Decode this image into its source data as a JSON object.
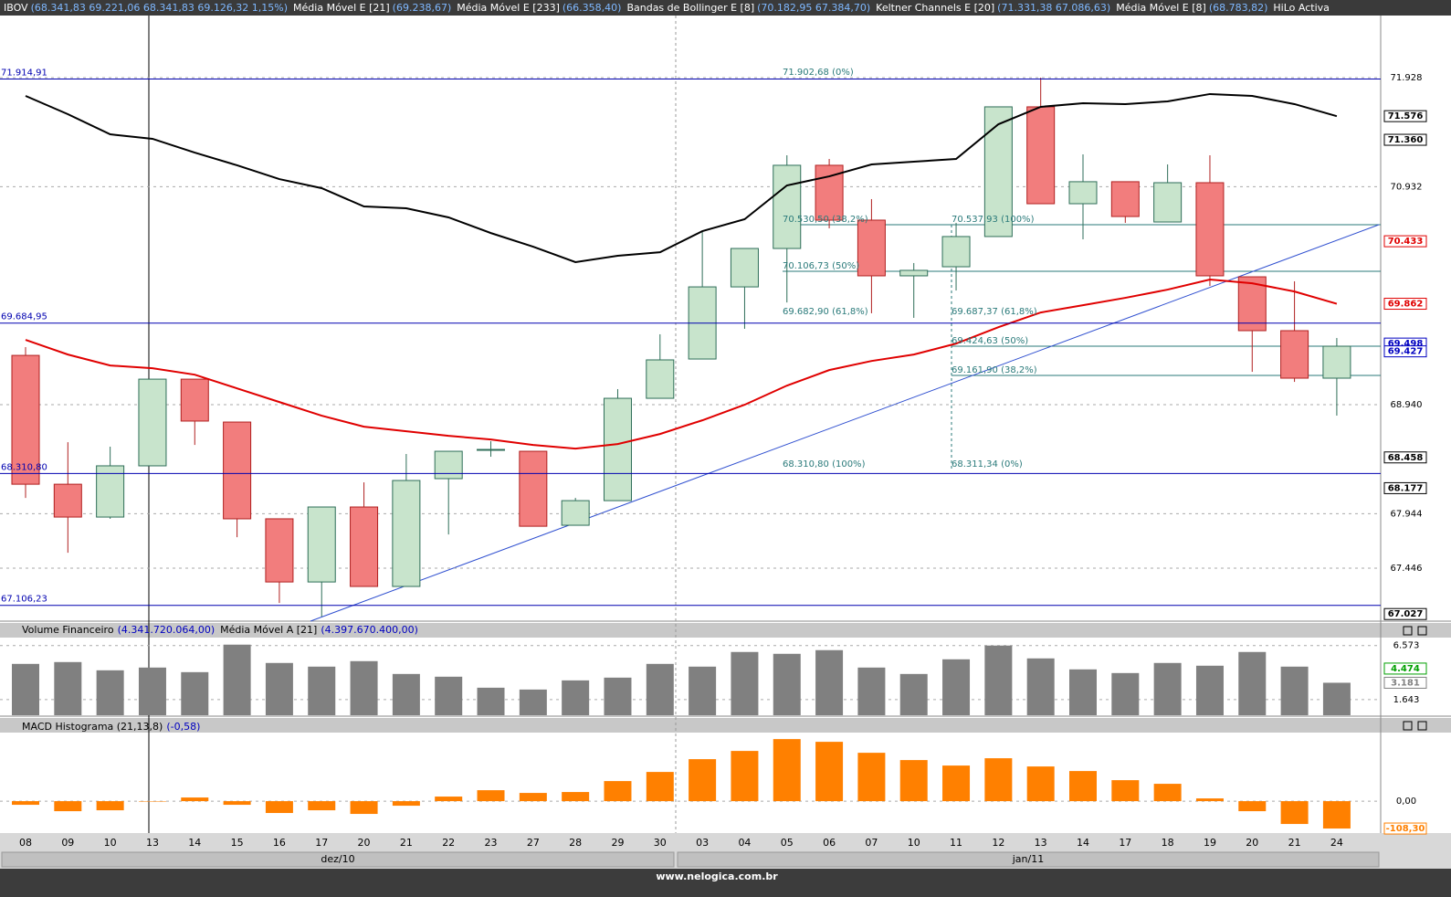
{
  "header": {
    "items": [
      {
        "name": "IBOV",
        "values": "(68.341,83  69.221,06  68.341,83  69.126,32  1,15%)"
      },
      {
        "name": "Média Móvel E [21]",
        "values": "(69.238,67)"
      },
      {
        "name": "Média Móvel E [233]",
        "values": "(66.358,40)"
      },
      {
        "name": "Bandas de Bollinger E [8]",
        "values": "(70.182,95  67.384,70)"
      },
      {
        "name": "Keltner Channels E [20]",
        "values": "(71.331,38  67.086,63)"
      },
      {
        "name": "Média Móvel E [8]",
        "values": "(68.783,82)"
      },
      {
        "name": "HiLo Activa",
        "values": ""
      }
    ]
  },
  "months": [
    "dez/10",
    "jan/11"
  ],
  "footer": "www.nelogica.com.br",
  "chart_data": [
    {
      "type": "candlestick",
      "categories": [
        "08",
        "09",
        "10",
        "13",
        "14",
        "15",
        "16",
        "17",
        "20",
        "21",
        "22",
        "23",
        "27",
        "28",
        "29",
        "30",
        "03",
        "04",
        "05",
        "06",
        "07",
        "10",
        "11",
        "12",
        "13",
        "14",
        "17",
        "18",
        "19",
        "20",
        "21",
        "24"
      ],
      "open": [
        69.39,
        68.213,
        67.913,
        68.381,
        69.173,
        68.781,
        67.897,
        67.32,
        68.005,
        67.279,
        68.264,
        68.531,
        68.514,
        67.838,
        68.063,
        68.998,
        69.357,
        70.016,
        70.367,
        71.127,
        70.626,
        70.117,
        70.2,
        70.476,
        71.661,
        70.776,
        70.977,
        70.609,
        70.968,
        70.108,
        69.616,
        69.182
      ],
      "high": [
        69.466,
        68.597,
        68.556,
        69.173,
        69.173,
        68.781,
        67.897,
        68.005,
        68.23,
        68.489,
        68.514,
        68.606,
        68.514,
        68.088,
        69.082,
        69.583,
        70.526,
        70.367,
        71.218,
        71.185,
        70.818,
        70.234,
        70.601,
        71.661,
        71.928,
        71.227,
        70.977,
        71.135,
        71.218,
        70.108,
        70.067,
        69.549
      ],
      "low": [
        68.088,
        67.587,
        67.897,
        68.381,
        68.572,
        67.729,
        67.128,
        67.003,
        67.279,
        67.279,
        67.754,
        68.464,
        67.829,
        67.838,
        68.063,
        68.998,
        69.357,
        69.633,
        69.874,
        70.551,
        69.775,
        69.733,
        69.983,
        70.476,
        70.776,
        70.451,
        70.601,
        70.609,
        70.025,
        69.24,
        69.148,
        68.84
      ],
      "close": [
        68.213,
        67.913,
        68.381,
        69.173,
        68.79,
        67.897,
        67.32,
        68.005,
        67.279,
        68.247,
        68.514,
        68.531,
        67.829,
        68.063,
        68.998,
        69.349,
        70.016,
        70.367,
        71.127,
        70.626,
        70.117,
        70.167,
        70.476,
        71.661,
        70.776,
        70.977,
        70.659,
        70.968,
        70.117,
        69.616,
        69.182,
        69.474
      ],
      "up_color": "#c8e4cc",
      "up_border": "#2e6e58",
      "down_color": "#f27d7d",
      "down_border": "#b02020",
      "series": [
        {
          "color": "#e00000",
          "values": [
            69.532,
            69.398,
            69.298,
            69.273,
            69.214,
            69.089,
            68.964,
            68.839,
            68.739,
            68.697,
            68.655,
            68.622,
            68.572,
            68.538,
            68.58,
            68.672,
            68.797,
            68.939,
            69.114,
            69.256,
            69.339,
            69.398,
            69.498,
            69.648,
            69.782,
            69.849,
            69.916,
            69.991,
            70.083,
            70.049,
            69.974,
            69.862
          ]
        },
        {
          "color": "#000000",
          "values": [
            71.761,
            71.594,
            71.41,
            71.369,
            71.243,
            71.127,
            71.001,
            70.918,
            70.751,
            70.734,
            70.651,
            70.508,
            70.383,
            70.242,
            70.3,
            70.333,
            70.525,
            70.634,
            70.943,
            71.026,
            71.135,
            71.16,
            71.185,
            71.502,
            71.661,
            71.694,
            71.686,
            71.711,
            71.778,
            71.761,
            71.686,
            71.576
          ]
        }
      ],
      "ylim": [
        66.962,
        72.487
      ],
      "yticks": [
        71.928,
        70.932,
        {
          "value": 68.94,
          "label": "68.940"
        },
        67.944,
        67.446
      ],
      "grid": true,
      "levels": [
        {
          "value": 71.91491,
          "label": "71.914,91",
          "color": "#0000b0"
        },
        {
          "value": 69.68495,
          "label": "69.684,95",
          "color": "#0000b0"
        },
        {
          "value": 68.3108,
          "label": "68.310,80",
          "color": "#0000b0"
        },
        {
          "value": 67.10623,
          "label": "67.106,23",
          "color": "#0000b0"
        }
      ],
      "tags": [
        {
          "value": 71.576,
          "color": "#000000"
        },
        {
          "value": 71.36,
          "label": "71.360",
          "color": "#000000"
        },
        {
          "value": 70.433,
          "color": "#e00000"
        },
        {
          "value": 69.862,
          "color": "#e00000"
        },
        {
          "value": 69.498,
          "color": "#0000c0"
        },
        {
          "value": 69.427,
          "color": "#0000c0"
        },
        {
          "value": 68.458,
          "color": "#000000"
        },
        {
          "value": 68.177,
          "color": "#000000"
        },
        {
          "value": 67.027,
          "color": "#000000"
        }
      ],
      "annotations": [
        "71.902,68 (0%)",
        "70.530,50 (38,2%)",
        "70.106,73 (50%)",
        "69.682,90 (61,8%)",
        "68.310,80 (100%)",
        "70.537,93 (100%)",
        "69.687,37 (61,8%)",
        "69.424,63 (50%)",
        "69.161,90 (38,2%)",
        "68.311,34 (0%)"
      ]
    },
    {
      "type": "bar",
      "title": "Volume Financeiro",
      "title_values": "(4.341.720.064,00)",
      "subtitle": "Média Móvel A [21]",
      "subtitle_values": "(4.397.670.400,00)",
      "color": "#808080",
      "values": [
        4.901,
        5.068,
        4.316,
        4.567,
        4.149,
        6.656,
        4.985,
        4.651,
        5.152,
        3.982,
        3.732,
        2.729,
        2.562,
        3.397,
        3.648,
        4.901,
        4.651,
        5.987,
        5.82,
        6.154,
        4.567,
        3.982,
        5.319,
        6.572,
        5.402,
        4.4,
        4.066,
        4.985,
        4.734,
        5.987,
        4.651,
        3.181
      ],
      "ylim": [
        0.22,
        7.3
      ],
      "yticks": [
        6.573,
        1.643
      ],
      "tags": [
        {
          "value": 4.474,
          "color": "#00a000"
        },
        {
          "value": 3.181,
          "color": "#808080"
        }
      ]
    },
    {
      "type": "bar",
      "title": "MACD Histograma (21,13,8)",
      "title_values": "(-0,58)",
      "color": "#ff8000",
      "values": [
        -14.4,
        -39.7,
        -36.1,
        -1.8,
        14.4,
        -14.4,
        -46.9,
        -36.1,
        -50.5,
        -18.1,
        18.1,
        43.3,
        32.5,
        36.1,
        79.4,
        115.5,
        166.1,
        198.6,
        245.5,
        234.7,
        191.3,
        162.5,
        140.8,
        169.7,
        137.2,
        119.1,
        83.0,
        68.6,
        10.8,
        -39.7,
        -90.3,
        -108.3
      ],
      "ylim": [
        -119,
        264
      ],
      "yticks": [
        {
          "value": 0,
          "label": "0,00"
        }
      ],
      "tags": [
        {
          "value": -108.3,
          "label": "-108,30",
          "color": "#ff8000"
        }
      ]
    }
  ]
}
